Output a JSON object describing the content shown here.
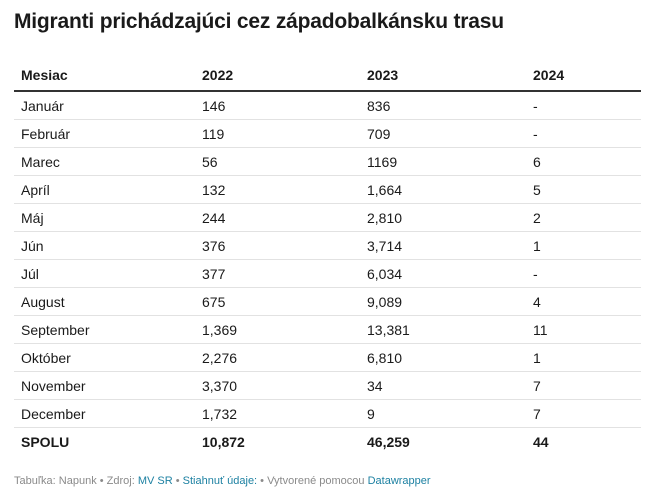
{
  "title": "Migranti prichádzajúci cez západobalkánsku trasu",
  "table": {
    "headers": [
      "Mesiac",
      "2022",
      "2023",
      "2024"
    ],
    "rows": [
      [
        "Január",
        "146",
        "836",
        "-"
      ],
      [
        "Február",
        "119",
        "709",
        "-"
      ],
      [
        "Marec",
        "56",
        "1169",
        "6"
      ],
      [
        "Apríl",
        "132",
        "1,664",
        "5"
      ],
      [
        "Máj",
        "244",
        "2,810",
        "2"
      ],
      [
        "Jún",
        "376",
        "3,714",
        "1"
      ],
      [
        "Júl",
        "377",
        "6,034",
        "-"
      ],
      [
        "August",
        "675",
        "9,089",
        "4"
      ],
      [
        "September",
        "1,369",
        "13,381",
        "11"
      ],
      [
        "Október",
        "2,276",
        "6,810",
        "1"
      ],
      [
        "November",
        "3,370",
        "34",
        "7"
      ],
      [
        "December",
        "1,732",
        "9",
        "7"
      ]
    ],
    "total": [
      "SPOLU",
      "10,872",
      "46,259",
      "44"
    ]
  },
  "footer": {
    "prefix": "Tabuľka: Napunk • Zdroj: ",
    "source_link": "MV SR",
    "sep1": " • ",
    "download_link": "Stiahnuť údaje:",
    "sep2": " • Vytvorené pomocou ",
    "tool_link": "Datawrapper"
  },
  "chart_data": {
    "type": "table",
    "title": "Migranti prichádzajúci cez západobalkánsku trasu",
    "columns": [
      "Mesiac",
      "2022",
      "2023",
      "2024"
    ],
    "categories": [
      "Január",
      "Február",
      "Marec",
      "Apríl",
      "Máj",
      "Jún",
      "Júl",
      "August",
      "September",
      "Október",
      "November",
      "December"
    ],
    "series": [
      {
        "name": "2022",
        "values": [
          146,
          119,
          56,
          132,
          244,
          376,
          377,
          675,
          1369,
          2276,
          3370,
          1732
        ]
      },
      {
        "name": "2023",
        "values": [
          836,
          709,
          1169,
          1664,
          2810,
          3714,
          6034,
          9089,
          13381,
          6810,
          34,
          9
        ]
      },
      {
        "name": "2024",
        "values": [
          null,
          null,
          6,
          5,
          2,
          1,
          null,
          4,
          11,
          1,
          7,
          7
        ]
      }
    ],
    "totals": {
      "2022": 10872,
      "2023": 46259,
      "2024": 44
    }
  }
}
